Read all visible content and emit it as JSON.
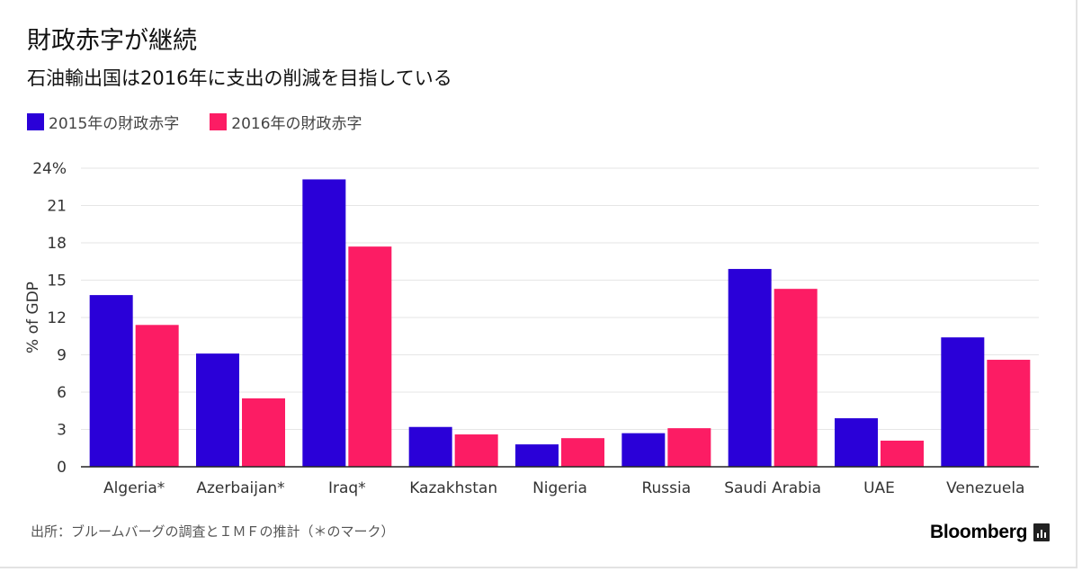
{
  "title": "財政赤字が継続",
  "subtitle": "石油輸出国は2016年に支出の削減を目指している",
  "source": "出所：ブルームバーグの調査とＩＭＦの推計（＊のマーク）",
  "brand": "Bloomberg",
  "brand_icon": "bar-chart-icon",
  "colors": {
    "series_2015": "#2a00d8",
    "series_2016": "#fc1c64",
    "grid": "#e6e6e6",
    "axis": "#222222"
  },
  "chart_data": {
    "type": "bar",
    "ylabel": "% of GDP",
    "xlabel": "",
    "ylim": [
      0,
      24
    ],
    "yticks": [
      0,
      3,
      6,
      9,
      12,
      15,
      18,
      21,
      24
    ],
    "ytick_labels": [
      "0",
      "3",
      "6",
      "9",
      "12",
      "15",
      "18",
      "21",
      "24%"
    ],
    "grid": true,
    "legend_position": "top-left",
    "categories": [
      "Algeria*",
      "Azerbaijan*",
      "Iraq*",
      "Kazakhstan",
      "Nigeria",
      "Russia",
      "Saudi Arabia",
      "UAE",
      "Venezuela"
    ],
    "series": [
      {
        "name": "2015年の財政赤字",
        "values": [
          13.8,
          9.1,
          23.1,
          3.2,
          1.8,
          2.7,
          15.9,
          3.9,
          10.4
        ]
      },
      {
        "name": "2016年の財政赤字",
        "values": [
          11.4,
          5.5,
          17.7,
          2.6,
          2.3,
          3.1,
          14.3,
          2.1,
          8.6
        ]
      }
    ]
  }
}
